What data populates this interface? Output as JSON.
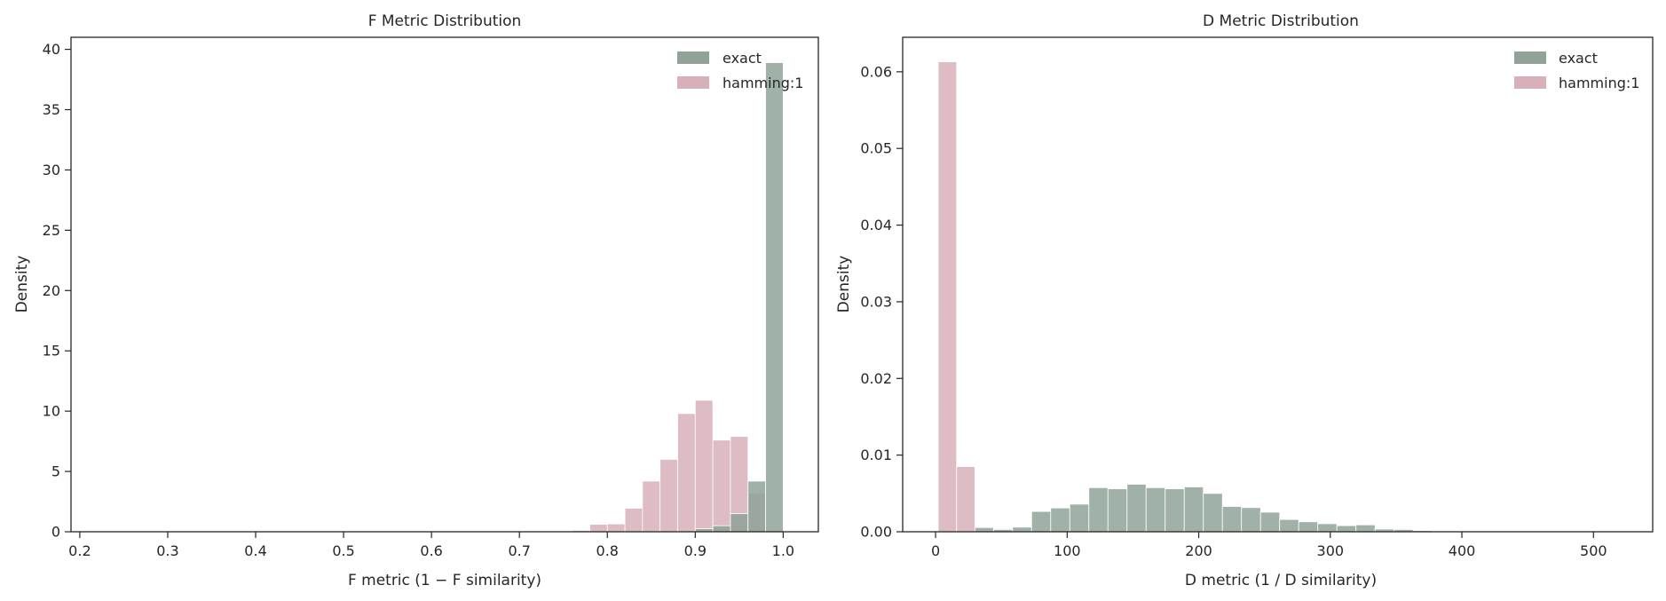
{
  "colors": {
    "exact": "#8fa398",
    "hamming": "#d8b0ba",
    "axis": "#262626"
  },
  "chart_data": [
    {
      "type": "histogram",
      "title": "F Metric Distribution",
      "xlabel": "F metric (1 − F similarity)",
      "ylabel": "Density",
      "xlim": [
        0.19,
        1.04
      ],
      "ylim": [
        0,
        41
      ],
      "xticks": [
        0.2,
        0.3,
        0.4,
        0.5,
        0.6,
        0.7,
        0.8,
        0.9,
        1.0
      ],
      "xtick_labels": [
        "0.2",
        "0.3",
        "0.4",
        "0.5",
        "0.6",
        "0.7",
        "0.8",
        "0.9",
        "1.0"
      ],
      "yticks": [
        0,
        5,
        10,
        15,
        20,
        25,
        30,
        35,
        40
      ],
      "ytick_labels": [
        "0",
        "5",
        "10",
        "15",
        "20",
        "25",
        "30",
        "35",
        "40"
      ],
      "legend": "top-right",
      "series": [
        {
          "name": "hamming:1",
          "color": "#d8b0ba",
          "bins": [
            [
              0.76,
              0.78,
              0.12
            ],
            [
              0.78,
              0.8,
              0.62
            ],
            [
              0.8,
              0.82,
              0.65
            ],
            [
              0.82,
              0.84,
              1.95
            ],
            [
              0.84,
              0.86,
              4.2
            ],
            [
              0.86,
              0.88,
              6.0
            ],
            [
              0.88,
              0.9,
              9.8
            ],
            [
              0.9,
              0.92,
              10.9
            ],
            [
              0.92,
              0.94,
              7.6
            ],
            [
              0.94,
              0.96,
              7.9
            ],
            [
              0.96,
              0.98,
              3.2
            ]
          ]
        },
        {
          "name": "exact",
          "color": "#8fa398",
          "bins": [
            [
              0.9,
              0.92,
              0.25
            ],
            [
              0.92,
              0.94,
              0.5
            ],
            [
              0.94,
              0.96,
              1.5
            ],
            [
              0.96,
              0.98,
              4.2
            ],
            [
              0.98,
              1.0,
              38.9
            ]
          ]
        }
      ]
    },
    {
      "type": "histogram",
      "title": "D Metric Distribution",
      "xlabel": "D metric (1 / D similarity)",
      "ylabel": "Density",
      "xlim": [
        -25,
        545
      ],
      "ylim": [
        0,
        0.0645
      ],
      "xticks": [
        0,
        100,
        200,
        300,
        400,
        500
      ],
      "xtick_labels": [
        "0",
        "100",
        "200",
        "300",
        "400",
        "500"
      ],
      "yticks": [
        0,
        0.01,
        0.02,
        0.03,
        0.04,
        0.05,
        0.06
      ],
      "ytick_labels": [
        "0.00",
        "0.01",
        "0.02",
        "0.03",
        "0.04",
        "0.05",
        "0.06"
      ],
      "legend": "top-right",
      "series": [
        {
          "name": "exact",
          "color": "#8fa398",
          "bins": [
            [
              29.5,
              44.0,
              0.00055
            ],
            [
              44.0,
              58.5,
              0.0003
            ],
            [
              58.5,
              73.0,
              0.0006
            ],
            [
              73.0,
              87.5,
              0.00265
            ],
            [
              87.5,
              102.0,
              0.0031
            ],
            [
              102.0,
              116.5,
              0.0036
            ],
            [
              116.5,
              131.0,
              0.00575
            ],
            [
              131.0,
              145.5,
              0.0056
            ],
            [
              145.5,
              160.0,
              0.0062
            ],
            [
              160.0,
              174.5,
              0.00575
            ],
            [
              174.5,
              189.0,
              0.0056
            ],
            [
              189.0,
              203.5,
              0.00585
            ],
            [
              203.5,
              218.0,
              0.005
            ],
            [
              218.0,
              232.5,
              0.0033
            ],
            [
              232.5,
              247.0,
              0.00315
            ],
            [
              247.0,
              261.5,
              0.00255
            ],
            [
              261.5,
              276.0,
              0.0016
            ],
            [
              276.0,
              290.5,
              0.0013
            ],
            [
              290.5,
              305.0,
              0.00105
            ],
            [
              305.0,
              319.5,
              0.0008
            ],
            [
              319.5,
              334.0,
              0.0009
            ],
            [
              334.0,
              348.5,
              0.00035
            ],
            [
              348.5,
              363.0,
              0.0003
            ],
            [
              363.0,
              377.5,
              0.00015
            ],
            [
              377.5,
              392.0,
              0.0001
            ],
            [
              392.0,
              406.5,
              5e-05
            ],
            [
              406.5,
              421.0,
              3e-05
            ],
            [
              421.0,
              435.5,
              2e-05
            ],
            [
              435.5,
              450.0,
              2e-05
            ],
            [
              450.0,
              464.5,
              2e-05
            ],
            [
              464.5,
              479.0,
              2e-05
            ],
            [
              479.0,
              493.5,
              1e-05
            ],
            [
              493.5,
              508.0,
              1e-05
            ],
            [
              508.0,
              522.5,
              1e-05
            ]
          ]
        },
        {
          "name": "hamming:1",
          "color": "#d8b0ba",
          "bins": [
            [
              2.0,
              16.0,
              0.0613
            ],
            [
              16.0,
              30.0,
              0.0085
            ]
          ]
        }
      ]
    }
  ]
}
